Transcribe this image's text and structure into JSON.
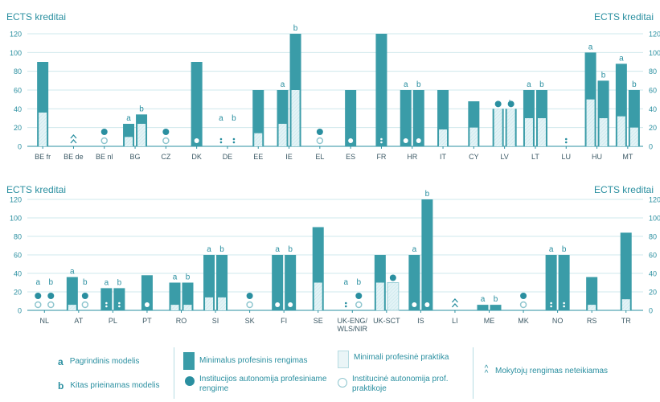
{
  "chart_data": {
    "type": "bar",
    "colors": {
      "main": "#3a9ca8",
      "practice": "#e3f3f6",
      "practice_hatch": "#c2e4ea",
      "text": "#2a8fa0",
      "grid": "#cfe8ec"
    },
    "panels": [
      {
        "ylabel_left": "ECTS kreditai",
        "ylabel_right": "ECTS kreditai",
        "ylim": [
          0,
          120
        ],
        "yticks": [
          "0",
          "20",
          "40",
          "60",
          "80",
          "100",
          "120"
        ],
        "countries": [
          {
            "code": "BE fr",
            "bars": [
              {
                "total": 90,
                "practice": 36
              }
            ]
          },
          {
            "code": "BE de",
            "bars": [],
            "symbols": [
              "caret"
            ]
          },
          {
            "code": "BE nl",
            "bars": [],
            "symbols": [
              "dot",
              "odot"
            ]
          },
          {
            "code": "BG",
            "bars": [
              {
                "model": "a",
                "total": 24,
                "practice": 10
              },
              {
                "model": "b",
                "total": 34,
                "practice": 24
              }
            ]
          },
          {
            "code": "CZ",
            "bars": [],
            "symbols": [
              "dot",
              "odot"
            ]
          },
          {
            "code": "DK",
            "bars": [
              {
                "total": 90,
                "practice": 0,
                "mark": "dot"
              }
            ]
          },
          {
            "code": "DE",
            "bars": [
              {
                "model": "a",
                "total": 0,
                "practice": 0,
                "mark": "dots"
              },
              {
                "model": "b",
                "total": 0,
                "practice": 0,
                "mark": "dots"
              }
            ]
          },
          {
            "code": "EE",
            "bars": [
              {
                "total": 60,
                "practice": 14
              }
            ]
          },
          {
            "code": "IE",
            "bars": [
              {
                "model": "a",
                "total": 60,
                "practice": 24
              },
              {
                "model": "b",
                "total": 120,
                "practice": 60
              }
            ]
          },
          {
            "code": "EL",
            "bars": [],
            "symbols": [
              "dot",
              "odot"
            ]
          },
          {
            "code": "ES",
            "bars": [
              {
                "total": 60,
                "practice": 0,
                "mark": "dot"
              }
            ]
          },
          {
            "code": "FR",
            "bars": [
              {
                "total": 120,
                "practice": 0,
                "mark": "dots"
              }
            ]
          },
          {
            "code": "HR",
            "bars": [
              {
                "model": "a",
                "total": 60,
                "practice": 0,
                "mark": "dot"
              },
              {
                "model": "b",
                "total": 60,
                "practice": 0,
                "mark": "dot"
              }
            ]
          },
          {
            "code": "IT",
            "bars": [
              {
                "total": 60,
                "practice": 18
              }
            ]
          },
          {
            "code": "CY",
            "bars": [
              {
                "total": 48,
                "practice": 20
              }
            ]
          },
          {
            "code": "LV",
            "bars": [
              {
                "model": "a",
                "total": 40,
                "practice": 40,
                "top": "dot"
              },
              {
                "model": "b",
                "total": 40,
                "practice": 40,
                "top": "dot"
              }
            ]
          },
          {
            "code": "LT",
            "bars": [
              {
                "model": "a",
                "total": 60,
                "practice": 30
              },
              {
                "model": "b",
                "total": 60,
                "practice": 30
              }
            ]
          },
          {
            "code": "LU",
            "bars": [
              {
                "total": 0,
                "practice": 0,
                "mark": "dots"
              }
            ]
          },
          {
            "code": "HU",
            "bars": [
              {
                "model": "a",
                "total": 100,
                "practice": 50
              },
              {
                "model": "b",
                "total": 70,
                "practice": 30
              }
            ]
          },
          {
            "code": "MT",
            "bars": [
              {
                "model": "a",
                "total": 88,
                "practice": 32
              },
              {
                "model": "b",
                "total": 60,
                "practice": 20
              }
            ]
          }
        ]
      },
      {
        "ylabel_left": "ECTS kreditai",
        "ylabel_right": "ECTS kreditai",
        "ylim": [
          0,
          120
        ],
        "yticks": [
          "0",
          "20",
          "40",
          "60",
          "80",
          "100",
          "120"
        ],
        "countries": [
          {
            "code": "NL",
            "bars": [
              {
                "model": "a",
                "total": 0,
                "practice": 0,
                "symbols": [
                  "dot",
                  "odot"
                ]
              },
              {
                "model": "b",
                "total": 0,
                "practice": 0,
                "symbols": [
                  "dot",
                  "odot"
                ]
              }
            ]
          },
          {
            "code": "AT",
            "bars": [
              {
                "model": "a",
                "total": 36,
                "practice": 6
              },
              {
                "model": "b",
                "total": 0,
                "practice": 0,
                "symbols": [
                  "dot",
                  "odot"
                ]
              }
            ]
          },
          {
            "code": "PL",
            "bars": [
              {
                "model": "a",
                "total": 24,
                "practice": 0,
                "mark": "dots"
              },
              {
                "model": "b",
                "total": 24,
                "practice": 0,
                "mark": "dots"
              }
            ]
          },
          {
            "code": "PT",
            "bars": [
              {
                "total": 38,
                "practice": 0,
                "mark": "dot"
              }
            ]
          },
          {
            "code": "RO",
            "bars": [
              {
                "model": "a",
                "total": 30,
                "practice": 6
              },
              {
                "model": "b",
                "total": 30,
                "practice": 6
              }
            ]
          },
          {
            "code": "SI",
            "bars": [
              {
                "model": "a",
                "total": 60,
                "practice": 14
              },
              {
                "model": "b",
                "total": 60,
                "practice": 14
              }
            ]
          },
          {
            "code": "SK",
            "bars": [],
            "symbols": [
              "dot",
              "odot"
            ]
          },
          {
            "code": "FI",
            "bars": [
              {
                "model": "a",
                "total": 60,
                "practice": 0,
                "mark": "dot"
              },
              {
                "model": "b",
                "total": 60,
                "practice": 0,
                "mark": "dot"
              }
            ]
          },
          {
            "code": "SE",
            "bars": [
              {
                "total": 90,
                "practice": 30
              }
            ]
          },
          {
            "code": "UK-ENG/\nWLS/NIR",
            "bars": [
              {
                "model": "a",
                "total": 0,
                "practice": 0,
                "mark": "dots"
              },
              {
                "model": "b",
                "total": 0,
                "practice": 0,
                "symbols": [
                  "dot",
                  "odot"
                ]
              }
            ]
          },
          {
            "code": "UK-SCT",
            "bars": [
              {
                "total": 60,
                "practice": 30
              },
              {
                "total": 30,
                "practice": 30,
                "outline": true,
                "top": "dot"
              }
            ]
          },
          {
            "code": "IS",
            "bars": [
              {
                "model": "a",
                "total": 60,
                "practice": 0,
                "mark": "dot"
              },
              {
                "model": "b",
                "total": 120,
                "practice": 0,
                "mark": "dot"
              }
            ]
          },
          {
            "code": "LI",
            "bars": [],
            "symbols": [
              "caret"
            ]
          },
          {
            "code": "ME",
            "bars": [
              {
                "model": "a",
                "total": 6,
                "practice": 0
              },
              {
                "model": "b",
                "total": 6,
                "practice": 0
              }
            ]
          },
          {
            "code": "MK",
            "bars": [],
            "symbols": [
              "dot",
              "odot"
            ]
          },
          {
            "code": "NO",
            "bars": [
              {
                "model": "a",
                "total": 60,
                "practice": 0,
                "mark": "dots"
              },
              {
                "model": "b",
                "total": 60,
                "practice": 0,
                "mark": "dots"
              }
            ]
          },
          {
            "code": "RS",
            "bars": [
              {
                "total": 36,
                "practice": 6
              }
            ]
          },
          {
            "code": "TR",
            "bars": [
              {
                "total": 84,
                "practice": 12
              }
            ]
          }
        ]
      }
    ]
  },
  "legend": {
    "model_a_key": "a",
    "model_a": "Pagrindinis modelis",
    "model_b_key": "b",
    "model_b": "Kitas prieinamas modelis",
    "minimum_training": "Minimalus profesinis rengimas",
    "institution_autonomy_training": "Institucijos autonomija profesiniame rengime",
    "minimum_practice": "Minimali profesinė praktika",
    "institution_autonomy_practice": "Institucinė autonomija prof. praktikoje",
    "not_offered": "Mokytojų rengimas neteikiamas",
    "caret_glyph": "^\n^"
  }
}
